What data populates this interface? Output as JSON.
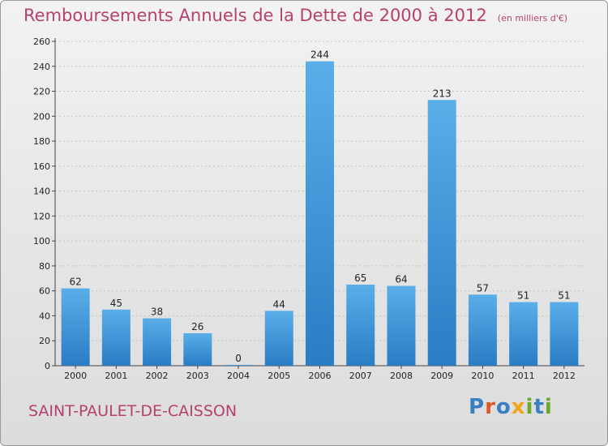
{
  "chart_data": {
    "type": "bar",
    "title": "Remboursements Annuels de la Dette de 2000 à 2012",
    "unit": "(en milliers d'€)",
    "categories": [
      "2000",
      "2001",
      "2002",
      "2003",
      "2004",
      "2005",
      "2006",
      "2007",
      "2008",
      "2009",
      "2010",
      "2011",
      "2012"
    ],
    "values": [
      62,
      45,
      38,
      26,
      0,
      44,
      244,
      65,
      64,
      213,
      57,
      51,
      51
    ],
    "ylim": [
      0,
      260
    ],
    "yticks": [
      0,
      20,
      40,
      60,
      80,
      100,
      120,
      140,
      160,
      180,
      200,
      220,
      240,
      260
    ],
    "grid": true,
    "bar_color": "#3d8fd6"
  },
  "footer": {
    "commune": "SAINT-PAULET-DE-CAISSON",
    "logo_letters": [
      {
        "ch": "P",
        "color": "#3a7fc4"
      },
      {
        "ch": "r",
        "color": "#e0552a"
      },
      {
        "ch": "o",
        "color": "#3a7fc4"
      },
      {
        "ch": "x",
        "color": "#f2a21b"
      },
      {
        "ch": "i",
        "color": "#6aaa2a"
      },
      {
        "ch": "t",
        "color": "#3a7fc4"
      },
      {
        "ch": "i",
        "color": "#6aaa2a"
      }
    ]
  }
}
